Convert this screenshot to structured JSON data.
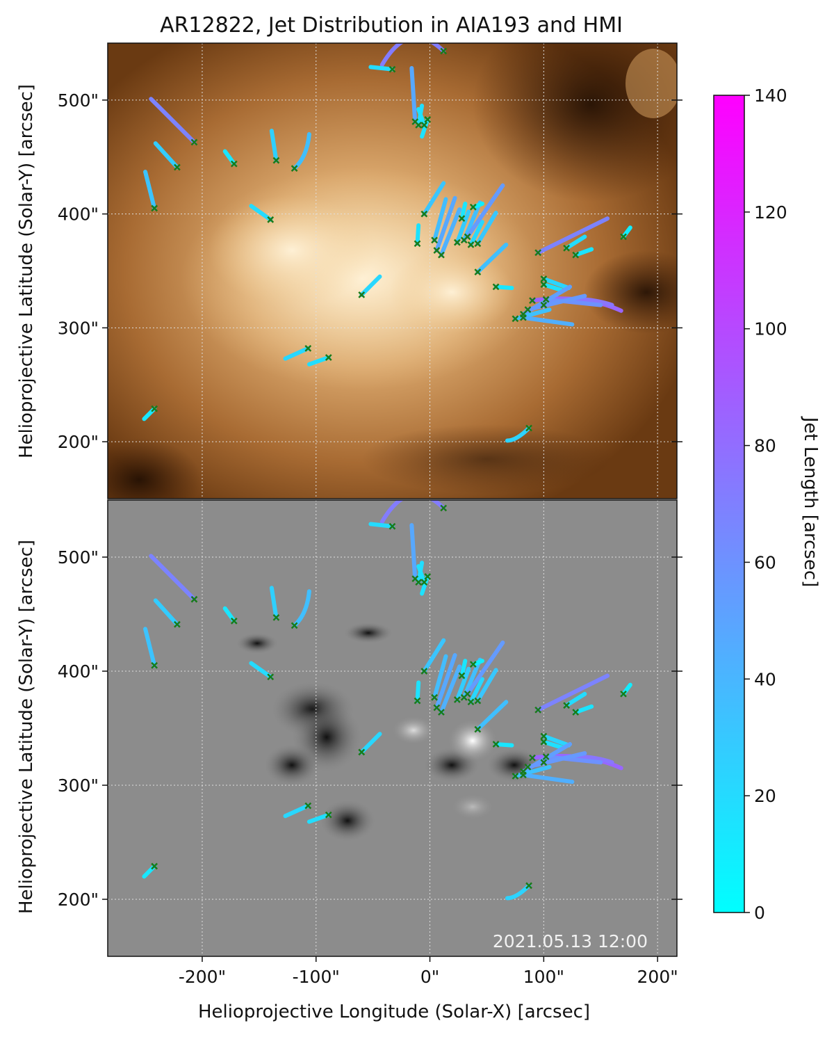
{
  "chart_data": {
    "type": "scatter",
    "title": "AR12822, Jet Distribution in AIA193 and HMI",
    "xlabel": "Helioprojective Longitude (Solar-X) [arcsec]",
    "ylabel": "Helioprojective Latitude (Solar-Y) [arcsec]",
    "xlim": [
      -283,
      217
    ],
    "ylim": [
      150,
      550
    ],
    "x_ticks": [
      -200,
      -100,
      0,
      100,
      200
    ],
    "x_tick_labels": [
      "-200\"",
      "-100\"",
      "0\"",
      "100\"",
      "200\""
    ],
    "y_ticks": [
      200,
      300,
      400,
      500
    ],
    "y_tick_labels": [
      "200\"",
      "300\"",
      "400\"",
      "500\""
    ],
    "grid": true,
    "panels": [
      {
        "name": "AIA193",
        "background": "aia193-image"
      },
      {
        "name": "HMI",
        "background": "hmi-magnetogram-image",
        "annotation": "2021.05.13 12:00"
      }
    ],
    "colorbar": {
      "label": "Jet Length [arcsec]",
      "min": 0,
      "max": 140,
      "ticks": [
        0,
        20,
        40,
        60,
        80,
        100,
        120,
        140
      ],
      "tick_labels": [
        "0",
        "20",
        "40",
        "60",
        "80",
        "100",
        "120",
        "140"
      ],
      "colors": [
        "#00ffff",
        "#ff00ff"
      ]
    },
    "marker_color": "#1a7a1a",
    "jets": [
      {
        "x0": 12,
        "y0": 543,
        "x1": -42,
        "y1": 531,
        "ctrl": [
          -18,
          572
        ],
        "length": 72
      },
      {
        "x0": -33,
        "y0": 527,
        "x1": -52,
        "y1": 529,
        "length": 20
      },
      {
        "x0": -13,
        "y0": 481,
        "x1": -16,
        "y1": 528,
        "length": 48
      },
      {
        "x0": -10,
        "y0": 478,
        "x1": -7,
        "y1": 495,
        "length": 18
      },
      {
        "x0": -5,
        "y0": 478,
        "x1": -10,
        "y1": 492,
        "length": 16
      },
      {
        "x0": -2,
        "y0": 483,
        "x1": -7,
        "y1": 468,
        "length": 16
      },
      {
        "x0": -207,
        "y0": 463,
        "x1": -245,
        "y1": 501,
        "length": 68
      },
      {
        "x0": -222,
        "y0": 441,
        "x1": -241,
        "y1": 462,
        "length": 28
      },
      {
        "x0": -172,
        "y0": 444,
        "x1": -180,
        "y1": 455,
        "length": 14
      },
      {
        "x0": -135,
        "y0": 447,
        "x1": -139,
        "y1": 473,
        "length": 26
      },
      {
        "x0": -119,
        "y0": 440,
        "x1": -106,
        "y1": 470,
        "ctrl": [
          -108,
          450
        ],
        "length": 35
      },
      {
        "x0": -242,
        "y0": 405,
        "x1": -250,
        "y1": 437,
        "length": 33
      },
      {
        "x0": -140,
        "y0": 395,
        "x1": -157,
        "y1": 407,
        "length": 20
      },
      {
        "x0": -5,
        "y0": 400,
        "x1": 12,
        "y1": 427,
        "length": 32
      },
      {
        "x0": -11,
        "y0": 374,
        "x1": -10,
        "y1": 390,
        "length": 16
      },
      {
        "x0": 4,
        "y0": 377,
        "x1": 14,
        "y1": 413,
        "length": 36
      },
      {
        "x0": 6,
        "y0": 368,
        "x1": 22,
        "y1": 414,
        "length": 48
      },
      {
        "x0": 10,
        "y0": 364,
        "x1": 26,
        "y1": 404,
        "length": 43
      },
      {
        "x0": 24,
        "y0": 375,
        "x1": 34,
        "y1": 402,
        "length": 28
      },
      {
        "x0": 28,
        "y0": 396,
        "x1": 31,
        "y1": 409,
        "length": 14
      },
      {
        "x0": 30,
        "y0": 377,
        "x1": 44,
        "y1": 410,
        "length": 35
      },
      {
        "x0": 36,
        "y0": 373,
        "x1": 46,
        "y1": 393,
        "length": 22
      },
      {
        "x0": 42,
        "y0": 374,
        "x1": 58,
        "y1": 401,
        "length": 31
      },
      {
        "x0": 33,
        "y0": 380,
        "x1": 64,
        "y1": 425,
        "length": 55
      },
      {
        "x0": 38,
        "y0": 406,
        "x1": 46,
        "y1": 409,
        "length": 9
      },
      {
        "x0": 42,
        "y0": 349,
        "x1": 67,
        "y1": 373,
        "length": 35
      },
      {
        "x0": -60,
        "y0": 329,
        "x1": -44,
        "y1": 345,
        "length": 22
      },
      {
        "x0": 58,
        "y0": 336,
        "x1": 72,
        "y1": 335,
        "length": 14
      },
      {
        "x0": 95,
        "y0": 366,
        "x1": 156,
        "y1": 396,
        "length": 68
      },
      {
        "x0": 120,
        "y0": 370,
        "x1": 136,
        "y1": 380,
        "length": 19
      },
      {
        "x0": 128,
        "y0": 364,
        "x1": 142,
        "y1": 369,
        "length": 15
      },
      {
        "x0": 170,
        "y0": 380,
        "x1": 176,
        "y1": 388,
        "length": 10
      },
      {
        "x0": 100,
        "y0": 343,
        "x1": 122,
        "y1": 335,
        "length": 23
      },
      {
        "x0": 100,
        "y0": 338,
        "x1": 116,
        "y1": 333,
        "length": 17
      },
      {
        "x0": 90,
        "y0": 324,
        "x1": 168,
        "y1": 315,
        "ctrl": [
          135,
          330
        ],
        "length": 84
      },
      {
        "x0": 100,
        "y0": 320,
        "x1": 160,
        "y1": 320,
        "ctrl": [
          130,
          330
        ],
        "length": 75
      },
      {
        "x0": 102,
        "y0": 325,
        "x1": 150,
        "y1": 320,
        "length": 60
      },
      {
        "x0": 82,
        "y0": 312,
        "x1": 123,
        "y1": 336,
        "length": 52
      },
      {
        "x0": 86,
        "y0": 316,
        "x1": 136,
        "y1": 328,
        "length": 56
      },
      {
        "x0": 75,
        "y0": 308,
        "x1": 105,
        "y1": 316,
        "length": 34
      },
      {
        "x0": 82,
        "y0": 309,
        "x1": 125,
        "y1": 303,
        "length": 44
      },
      {
        "x0": -107,
        "y0": 282,
        "x1": -127,
        "y1": 273,
        "length": 22
      },
      {
        "x0": -89,
        "y0": 274,
        "x1": -106,
        "y1": 268,
        "length": 18
      },
      {
        "x0": -242,
        "y0": 229,
        "x1": -251,
        "y1": 220,
        "length": 13
      },
      {
        "x0": 87,
        "y0": 212,
        "x1": 68,
        "y1": 201,
        "ctrl": [
          76,
          201
        ],
        "length": 24
      }
    ]
  }
}
